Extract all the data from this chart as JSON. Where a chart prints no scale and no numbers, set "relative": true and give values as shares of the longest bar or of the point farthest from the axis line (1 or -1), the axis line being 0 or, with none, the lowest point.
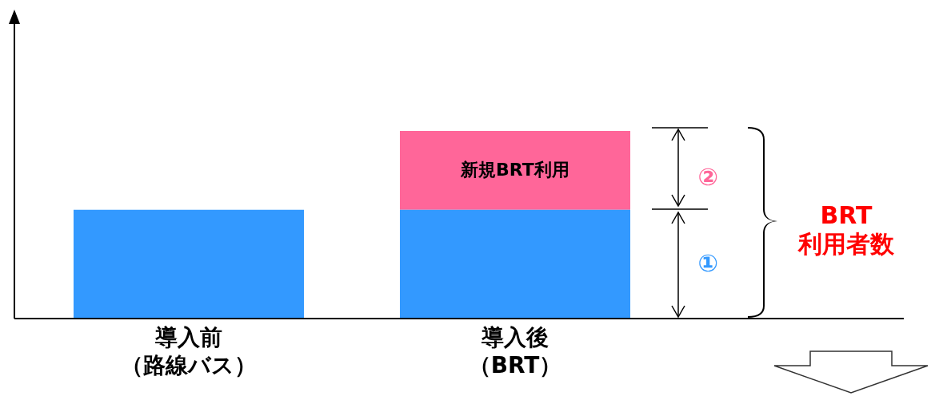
{
  "chart_data": {
    "type": "bar",
    "relative": true,
    "stacked": true,
    "categories": [
      "導入前（路線バス）",
      "導入後（BRT）"
    ],
    "series": [
      {
        "color": "#3399ff",
        "values": [
          0.58,
          0.58
        ]
      },
      {
        "color": "#ff6699",
        "values": [
          null,
          0.42
        ]
      }
    ],
    "annotations": [
      "新規BRT利用",
      "②",
      "①",
      "BRT\n利用者数"
    ],
    "grid": false,
    "legend": false
  }
}
